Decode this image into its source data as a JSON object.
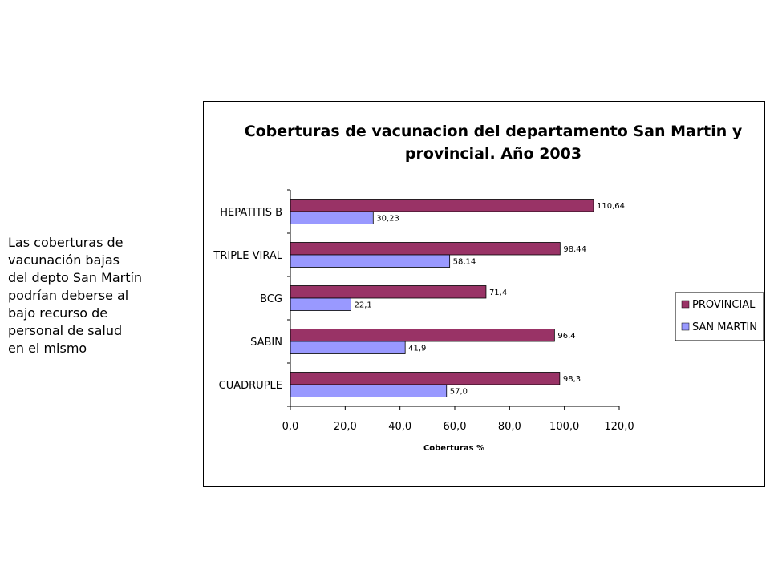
{
  "note": {
    "lines": [
      "Las coberturas de",
      "vacunación bajas",
      "del depto San Martín",
      "podrían deberse al",
      "bajo recurso de",
      "personal de salud",
      "en el mismo"
    ]
  },
  "chart_data": {
    "type": "bar",
    "orientation": "horizontal",
    "title": "Coberturas de vacunacion del departamento San Martin y provincial. Año 2003",
    "title_lines": [
      "Coberturas de vacunacion del departamento San Martin y",
      "provincial. Año 2003"
    ],
    "xlabel": "Coberturas %",
    "ylabel": "",
    "categories": [
      "HEPATITIS B",
      "TRIPLE VIRAL",
      "BCG",
      "SABIN",
      "CUADRUPLE"
    ],
    "series": [
      {
        "name": "PROVINCIAL",
        "color": "#993366",
        "values": [
          110.64,
          98.44,
          71.4,
          96.4,
          98.3
        ],
        "labels": [
          "110,64",
          "98,44",
          "71,4",
          "96,4",
          "98,3"
        ]
      },
      {
        "name": "SAN MARTIN",
        "color": "#9999ff",
        "values": [
          30.23,
          58.14,
          22.1,
          41.9,
          57.0
        ],
        "labels": [
          "30,23",
          "58,14",
          "22,1",
          "41,9",
          "57,0"
        ]
      }
    ],
    "xlim": [
      0,
      120
    ],
    "xticks": [
      0,
      20,
      40,
      60,
      80,
      100,
      120
    ],
    "xtick_labels": [
      "0,0",
      "20,0",
      "40,0",
      "60,0",
      "80,0",
      "100,0",
      "120,0"
    ],
    "grid": false,
    "legend_position": "right"
  }
}
